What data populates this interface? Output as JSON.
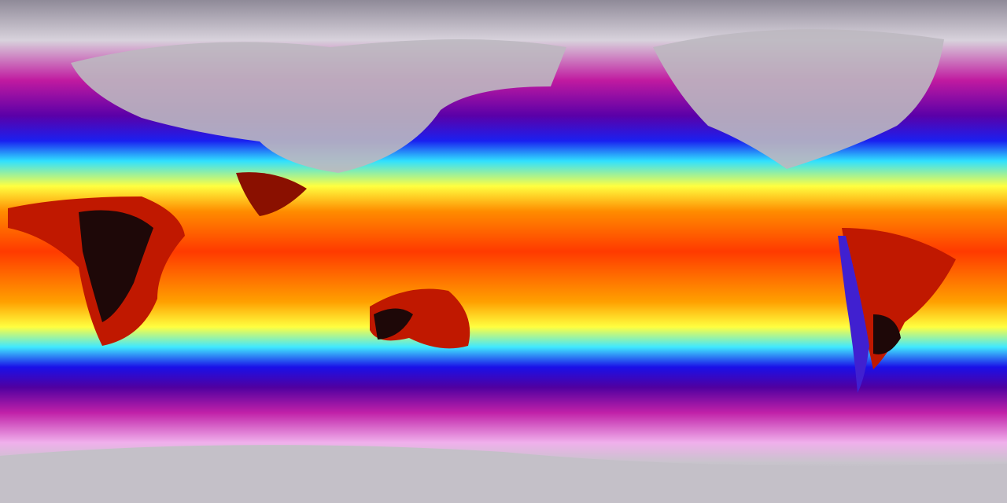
{
  "map": {
    "projection": "equirectangular",
    "palette": [
      "#8f8a98",
      "#e8e2ea",
      "#c21aa8",
      "#6a00a0",
      "#1a10e8",
      "#2ad8ff",
      "#ffff30",
      "#ffb000",
      "#ff4000",
      "#d01000",
      "#2a0a0a"
    ],
    "land_hot_color": "#1e0808",
    "land_cold_color": "#b8b4bc"
  }
}
